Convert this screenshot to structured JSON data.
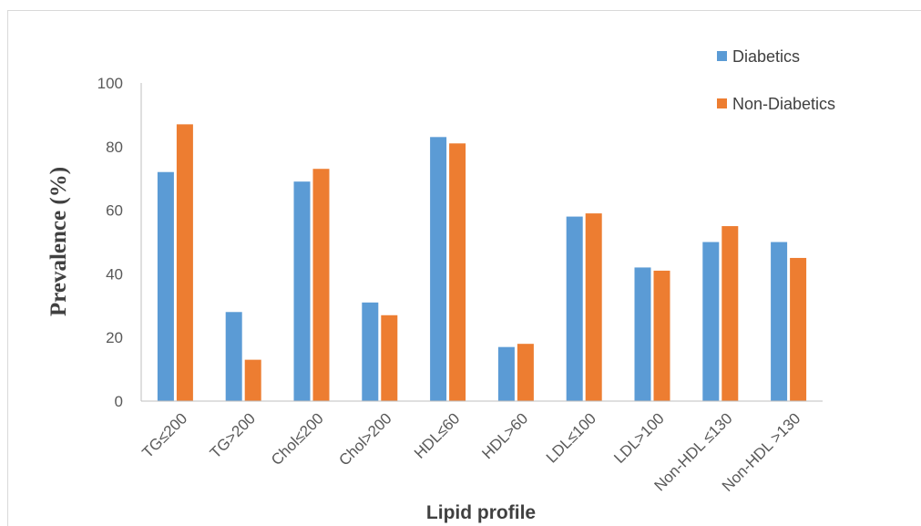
{
  "chart_data": {
    "type": "bar",
    "title": "",
    "xlabel": "Lipid profile",
    "ylabel": "Prevalence (%)",
    "ylim": [
      0,
      100
    ],
    "yticks": [
      0,
      20,
      40,
      60,
      80,
      100
    ],
    "categories": [
      "TG≤200",
      "TG>200",
      "Chol≤200",
      "Chol>200",
      "HDL≤60",
      "HDL>60",
      "LDL≤100",
      "LDL>100",
      "Non-HDL ≤130",
      "Non-HDL >130"
    ],
    "series": [
      {
        "name": "Diabetics",
        "color": "#5b9bd5",
        "values": [
          72,
          28,
          69,
          31,
          83,
          17,
          58,
          42,
          50,
          50
        ]
      },
      {
        "name": "Non-Diabetics",
        "color": "#ed7d31",
        "values": [
          87,
          13,
          73,
          27,
          81,
          18,
          59,
          41,
          55,
          45
        ]
      }
    ],
    "legend_position": "top-right",
    "grid": false
  }
}
